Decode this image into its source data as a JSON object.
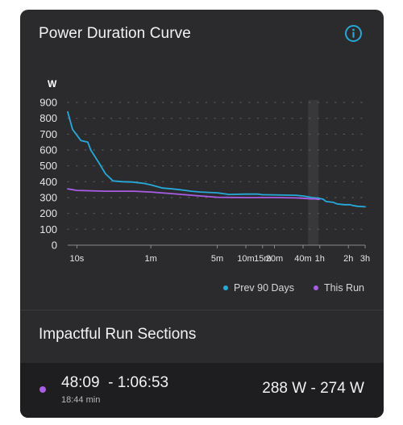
{
  "card": {
    "title": "Power Duration Curve",
    "info_icon": "info-icon"
  },
  "colors": {
    "prev": "#27a9da",
    "run": "#a95ee6",
    "card_bg": "#2b2b2d",
    "highlight": "#38383b"
  },
  "chart_data": {
    "type": "line",
    "title": "",
    "ylabel": "W",
    "xlabel": "",
    "ylim": [
      0,
      900
    ],
    "yticks": [
      0,
      100,
      200,
      300,
      400,
      500,
      600,
      700,
      800,
      900
    ],
    "x_scale": "log",
    "x_unit": "seconds",
    "xlim": [
      8,
      10800
    ],
    "xticks": [
      {
        "label": "10s",
        "value": 10
      },
      {
        "label": "1m",
        "value": 60
      },
      {
        "label": "5m",
        "value": 300
      },
      {
        "label": "10m",
        "value": 600
      },
      {
        "label": "15m",
        "value": 900
      },
      {
        "label": "20m",
        "value": 1200
      },
      {
        "label": "40m",
        "value": 2400
      },
      {
        "label": "1h",
        "value": 3600
      },
      {
        "label": "2h",
        "value": 7200
      },
      {
        "label": "3h",
        "value": 10800
      }
    ],
    "grid": true,
    "legend_position": "bottom-right",
    "highlight_range": [
      2700,
      3500
    ],
    "series": [
      {
        "name": "Prev 90 Days",
        "color": "#27a9da",
        "points": [
          [
            8,
            840
          ],
          [
            9,
            730
          ],
          [
            11,
            660
          ],
          [
            13,
            650
          ],
          [
            14,
            600
          ],
          [
            17,
            520
          ],
          [
            20,
            450
          ],
          [
            24,
            405
          ],
          [
            30,
            400
          ],
          [
            38,
            398
          ],
          [
            50,
            390
          ],
          [
            60,
            380
          ],
          [
            80,
            360
          ],
          [
            100,
            355
          ],
          [
            120,
            350
          ],
          [
            160,
            340
          ],
          [
            200,
            335
          ],
          [
            300,
            330
          ],
          [
            400,
            320
          ],
          [
            600,
            322
          ],
          [
            800,
            322
          ],
          [
            900,
            318
          ],
          [
            1000,
            318
          ],
          [
            1500,
            316
          ],
          [
            2000,
            315
          ],
          [
            2400,
            310
          ],
          [
            3000,
            300
          ],
          [
            3500,
            296
          ],
          [
            3900,
            290
          ],
          [
            4200,
            275
          ],
          [
            5000,
            270
          ],
          [
            5500,
            260
          ],
          [
            6500,
            255
          ],
          [
            7500,
            255
          ],
          [
            8000,
            250
          ],
          [
            9000,
            245
          ],
          [
            10800,
            242
          ]
        ]
      },
      {
        "name": "This Run",
        "color": "#a95ee6",
        "points": [
          [
            8,
            355
          ],
          [
            10,
            345
          ],
          [
            20,
            340
          ],
          [
            40,
            340
          ],
          [
            60,
            335
          ],
          [
            100,
            325
          ],
          [
            200,
            310
          ],
          [
            300,
            302
          ],
          [
            600,
            300
          ],
          [
            1200,
            300
          ],
          [
            2000,
            298
          ],
          [
            2400,
            296
          ],
          [
            2901,
            292
          ],
          [
            3200,
            292
          ],
          [
            3400,
            290
          ],
          [
            3550,
            288
          ]
        ]
      }
    ]
  },
  "sections": {
    "title": "Impactful Run Sections",
    "items": [
      {
        "time_range": "48:09  - 1:06:53",
        "duration": "18:44 min",
        "power": "288 W - 274 W",
        "dot_color": "#a95ee6"
      }
    ]
  }
}
